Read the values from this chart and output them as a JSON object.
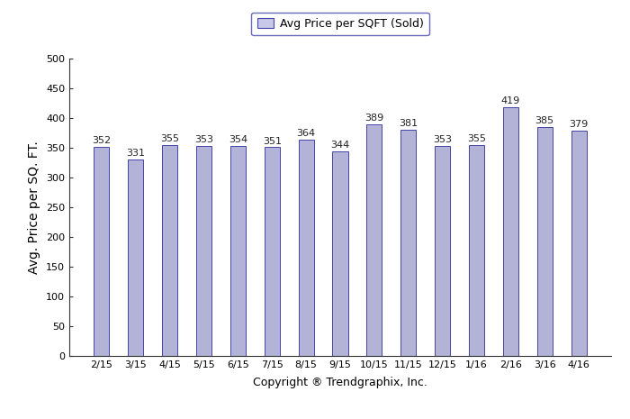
{
  "categories": [
    "2/15",
    "3/15",
    "4/15",
    "5/15",
    "6/15",
    "7/15",
    "8/15",
    "9/15",
    "10/15",
    "11/15",
    "12/15",
    "1/16",
    "2/16",
    "3/16",
    "4/16"
  ],
  "values": [
    352,
    331,
    355,
    353,
    354,
    351,
    364,
    344,
    389,
    381,
    353,
    355,
    419,
    385,
    379
  ],
  "bar_color": "#b3b3d7",
  "bar_edgecolor": "#4444aa",
  "ylabel": "Avg. Price per SQ. FT.",
  "xlabel": "Copyright ® Trendgraphix, Inc.",
  "ylim": [
    0,
    500
  ],
  "yticks": [
    0,
    50,
    100,
    150,
    200,
    250,
    300,
    350,
    400,
    450,
    500
  ],
  "legend_label": "Avg Price per SQFT (Sold)",
  "legend_facecolor": "#c8c8e8",
  "legend_edgecolor": "#4444aa",
  "value_label_color": "#222222",
  "value_label_fontsize": 8,
  "tick_label_fontsize": 8,
  "ylabel_fontsize": 10,
  "xlabel_fontsize": 9,
  "background_color": "#ffffff",
  "bar_width": 0.45,
  "spine_color": "#333333"
}
